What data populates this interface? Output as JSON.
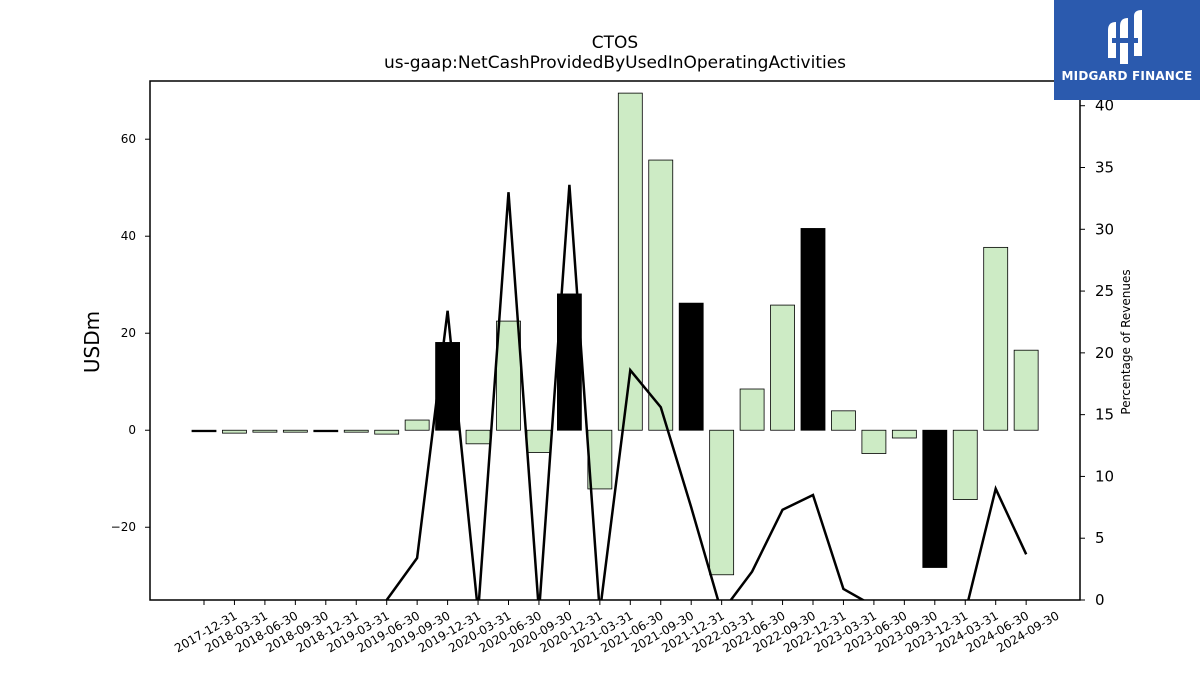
{
  "chart_data": {
    "type": "bar",
    "title": "CTOS",
    "subtitle": "us-gaap:NetCashProvidedByUsedInOperatingActivities",
    "ylabel": "USDm",
    "y2label": "Percentage of Revenues",
    "ylim": [
      -35,
      72
    ],
    "y2lim": [
      0,
      42
    ],
    "yticks": [
      -20,
      0,
      20,
      40,
      60
    ],
    "y2ticks": [
      0,
      5,
      10,
      15,
      20,
      25,
      30,
      35,
      40
    ],
    "categories": [
      "2017-12-31",
      "2018-03-31",
      "2018-06-30",
      "2018-09-30",
      "2018-12-31",
      "2019-03-31",
      "2019-06-30",
      "2019-09-30",
      "2019-12-31",
      "2020-03-31",
      "2020-06-30",
      "2020-09-30",
      "2020-12-31",
      "2021-03-31",
      "2021-06-30",
      "2021-09-30",
      "2021-12-31",
      "2022-03-31",
      "2022-06-30",
      "2022-09-30",
      "2022-12-31",
      "2023-03-31",
      "2023-06-30",
      "2023-09-30",
      "2023-12-31",
      "2024-03-31",
      "2024-06-30",
      "2024-09-30"
    ],
    "series": [
      {
        "kind": "bar",
        "values": [
          -0.3,
          -0.6,
          -0.4,
          -0.4,
          -0.3,
          -0.4,
          -0.8,
          2.1,
          18.1,
          -2.8,
          22.5,
          -4.6,
          28.1,
          -12.1,
          69.5,
          55.7,
          26.2,
          -29.8,
          8.5,
          25.8,
          41.6,
          4.0,
          -4.8,
          -1.6,
          -28.3,
          -14.3,
          37.7,
          16.5
        ],
        "q4": [
          true,
          false,
          false,
          false,
          true,
          false,
          false,
          false,
          true,
          false,
          false,
          false,
          true,
          false,
          false,
          false,
          true,
          false,
          false,
          false,
          true,
          false,
          false,
          false,
          true,
          false,
          false,
          false
        ]
      },
      {
        "kind": "line",
        "values": [
          null,
          null,
          null,
          null,
          null,
          null,
          0.0,
          3.4,
          23.4,
          -1.0,
          33.0,
          -1.0,
          33.6,
          -1.0,
          18.6,
          15.6,
          7.5,
          -1.0,
          2.3,
          7.3,
          8.5,
          0.9,
          -0.5,
          -1.0,
          -1.0,
          -1.0,
          9.0,
          3.7
        ]
      }
    ],
    "colors": {
      "bar": "#cdebc5",
      "bar_q4": "#000000",
      "edge": "#000000",
      "line": "#000000"
    },
    "grid": false,
    "legend": "none"
  },
  "logo": {
    "text": "MIDGARD FINANCE",
    "bg": "#2b5aae"
  }
}
